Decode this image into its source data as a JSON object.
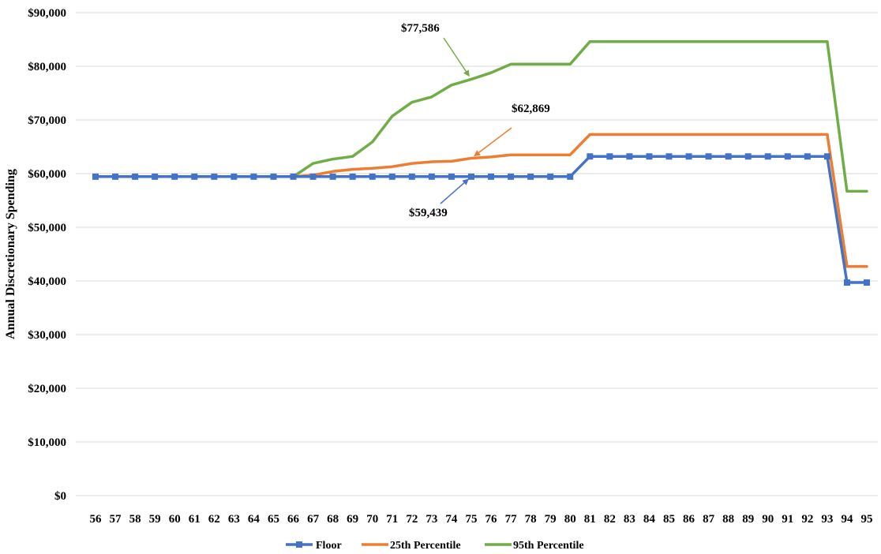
{
  "chart_data": {
    "type": "line",
    "title": "",
    "xlabel": "",
    "ylabel": "Annual Discretionary Spending",
    "x": [
      56,
      57,
      58,
      59,
      60,
      61,
      62,
      63,
      64,
      65,
      66,
      67,
      68,
      69,
      70,
      71,
      72,
      73,
      74,
      75,
      76,
      77,
      78,
      79,
      80,
      81,
      82,
      83,
      84,
      85,
      86,
      87,
      88,
      89,
      90,
      91,
      92,
      93,
      94,
      95
    ],
    "ylim": [
      0,
      90000
    ],
    "yticks": [
      0,
      10000,
      20000,
      30000,
      40000,
      50000,
      60000,
      70000,
      80000,
      90000
    ],
    "ytick_labels": [
      "$0",
      "$10,000",
      "$20,000",
      "$30,000",
      "$40,000",
      "$50,000",
      "$60,000",
      "$70,000",
      "$80,000",
      "$90,000"
    ],
    "grid": true,
    "legend_position": "bottom",
    "series": [
      {
        "name": "Floor",
        "color": "#4472c4",
        "marker": "square",
        "values": [
          59439,
          59439,
          59439,
          59439,
          59439,
          59439,
          59439,
          59439,
          59439,
          59439,
          59439,
          59439,
          59439,
          59439,
          59439,
          59439,
          59439,
          59439,
          59439,
          59439,
          59439,
          59439,
          59439,
          59439,
          59439,
          63200,
          63200,
          63200,
          63200,
          63200,
          63200,
          63200,
          63200,
          63200,
          63200,
          63200,
          63200,
          63200,
          39700,
          39700
        ]
      },
      {
        "name": "25th Percentile",
        "color": "#ed7d31",
        "marker": "none",
        "values": [
          59439,
          59439,
          59439,
          59439,
          59439,
          59439,
          59439,
          59439,
          59439,
          59439,
          59439,
          59700,
          60400,
          60800,
          61000,
          61300,
          61900,
          62200,
          62300,
          62869,
          63100,
          63500,
          63500,
          63500,
          63500,
          67300,
          67300,
          67300,
          67300,
          67300,
          67300,
          67300,
          67300,
          67300,
          67300,
          67300,
          67300,
          67300,
          42700,
          42700
        ]
      },
      {
        "name": "95th Percentile",
        "color": "#70ad47",
        "marker": "none",
        "values": [
          59439,
          59439,
          59439,
          59439,
          59439,
          59439,
          59439,
          59439,
          59439,
          59439,
          59439,
          61900,
          62700,
          63200,
          65900,
          70700,
          73300,
          74300,
          76500,
          77586,
          78800,
          80400,
          80400,
          80400,
          80400,
          84600,
          84600,
          84600,
          84600,
          84600,
          84600,
          84600,
          84600,
          84600,
          84600,
          84600,
          84600,
          84600,
          56700,
          56700
        ]
      }
    ],
    "annotations": [
      {
        "text": "$77,586",
        "series": "95th Percentile",
        "x": 75,
        "y": 77586,
        "color": "#70ad47"
      },
      {
        "text": "$62,869",
        "series": "25th Percentile",
        "x": 75,
        "y": 62869,
        "color": "#ed7d31"
      },
      {
        "text": "$59,439",
        "series": "Floor",
        "x": 75,
        "y": 59439,
        "color": "#4472c4"
      }
    ]
  }
}
